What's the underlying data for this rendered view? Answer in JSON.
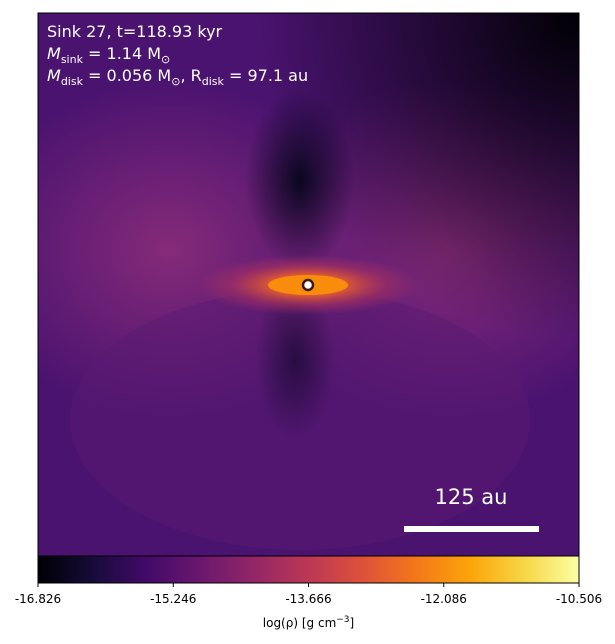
{
  "chart_data": {
    "type": "image",
    "annotations": [
      [
        "Sink 27, t=118.93 kyr"
      ],
      [
        "M",
        "sink",
        " = 1.14 M",
        "⊙"
      ],
      [
        "M",
        "disk",
        " = 0.056 M",
        "⊙",
        ", R",
        "disk",
        " = 97.1 au"
      ]
    ],
    "scale_bar": "125 au",
    "colorbar": {
      "label": [
        "log(ρ) [g cm",
        "−3",
        "]"
      ],
      "lim": [
        -16.826,
        -10.506
      ],
      "ticks": [
        -16.826,
        -15.246,
        -13.666,
        -12.086,
        -10.506
      ]
    }
  }
}
